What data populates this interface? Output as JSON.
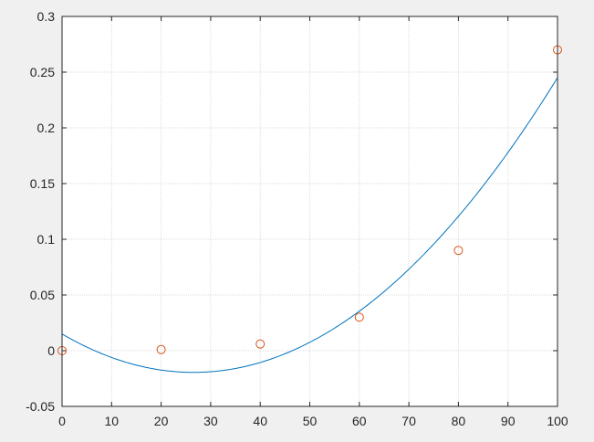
{
  "chart_data": {
    "type": "scatter",
    "title": "",
    "xlabel": "",
    "ylabel": "",
    "xlim": [
      0,
      100
    ],
    "ylim": [
      -0.05,
      0.3
    ],
    "x_ticks": [
      0,
      10,
      20,
      30,
      40,
      50,
      60,
      70,
      80,
      90,
      100
    ],
    "y_ticks": [
      -0.05,
      0,
      0.05,
      0.1,
      0.15,
      0.2,
      0.25,
      0.3
    ],
    "x_tick_labels": [
      "0",
      "10",
      "20",
      "30",
      "40",
      "50",
      "60",
      "70",
      "80",
      "90",
      "100"
    ],
    "y_tick_labels": [
      "-0.05",
      "0",
      "0.05",
      "0.1",
      "0.15",
      "0.2",
      "0.25",
      "0.3"
    ],
    "grid": true,
    "legend": "none",
    "series": [
      {
        "type": "line",
        "color": "#0072bd",
        "fit": "quadratic",
        "coefficients": [
          0.015,
          -0.0026,
          4.9e-05
        ]
      },
      {
        "type": "scatter",
        "marker": "circle",
        "color": "#d95319",
        "x": [
          0,
          20,
          40,
          60,
          80,
          100
        ],
        "y": [
          0,
          0.001,
          0.006,
          0.03,
          0.09,
          0.27
        ]
      }
    ]
  }
}
